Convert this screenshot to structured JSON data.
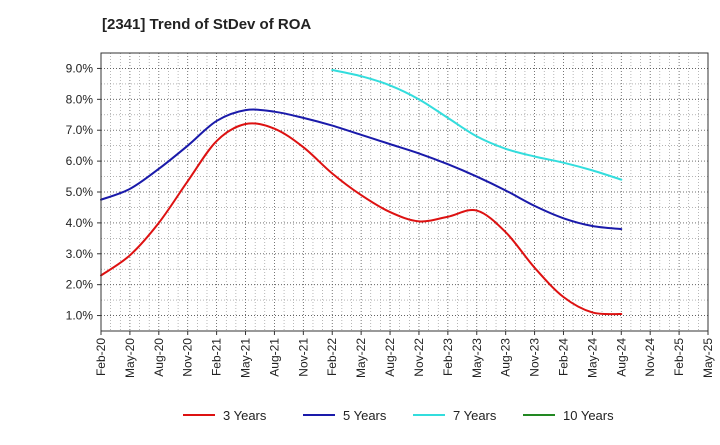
{
  "chart_data": {
    "type": "line",
    "title": "[2341]  Trend of StDev of ROA",
    "xlabel": "",
    "ylabel": "",
    "x_ticks": [
      "Feb-20",
      "May-20",
      "Aug-20",
      "Nov-20",
      "Feb-21",
      "May-21",
      "Aug-21",
      "Nov-21",
      "Feb-22",
      "May-22",
      "Aug-22",
      "Nov-22",
      "Feb-23",
      "May-23",
      "Aug-23",
      "Nov-23",
      "Feb-24",
      "May-24",
      "Aug-24",
      "Nov-24",
      "Feb-25",
      "May-25"
    ],
    "y_ticks": [
      "1.0%",
      "2.0%",
      "3.0%",
      "4.0%",
      "5.0%",
      "6.0%",
      "7.0%",
      "8.0%",
      "9.0%"
    ],
    "ylim": [
      0.5,
      9.5
    ],
    "grid": true,
    "legend_position": "bottom",
    "series": [
      {
        "name": "3 Years",
        "color": "#dd1111",
        "values": [
          2.3,
          2.95,
          4.0,
          5.35,
          6.65,
          7.2,
          7.05,
          6.45,
          5.6,
          4.9,
          4.35,
          4.05,
          4.2,
          4.4,
          3.7,
          2.55,
          1.6,
          1.1,
          1.05
        ]
      },
      {
        "name": "5 Years",
        "color": "#1a1aaa",
        "values": [
          4.75,
          5.1,
          5.75,
          6.5,
          7.3,
          7.65,
          7.6,
          7.4,
          7.15,
          6.85,
          6.55,
          6.25,
          5.9,
          5.5,
          5.05,
          4.55,
          4.15,
          3.9,
          3.8
        ]
      },
      {
        "name": "7 Years",
        "color": "#33dddd",
        "values": [
          null,
          null,
          null,
          null,
          null,
          null,
          null,
          null,
          8.95,
          8.75,
          8.45,
          8.0,
          7.4,
          6.8,
          6.4,
          6.15,
          5.95,
          5.7,
          5.4
        ]
      },
      {
        "name": "10 Years",
        "color": "#228822",
        "values": [
          null,
          null,
          null,
          null,
          null,
          null,
          null,
          null,
          null,
          null,
          null,
          null,
          null,
          null,
          null,
          null,
          null,
          null,
          null
        ]
      }
    ]
  }
}
